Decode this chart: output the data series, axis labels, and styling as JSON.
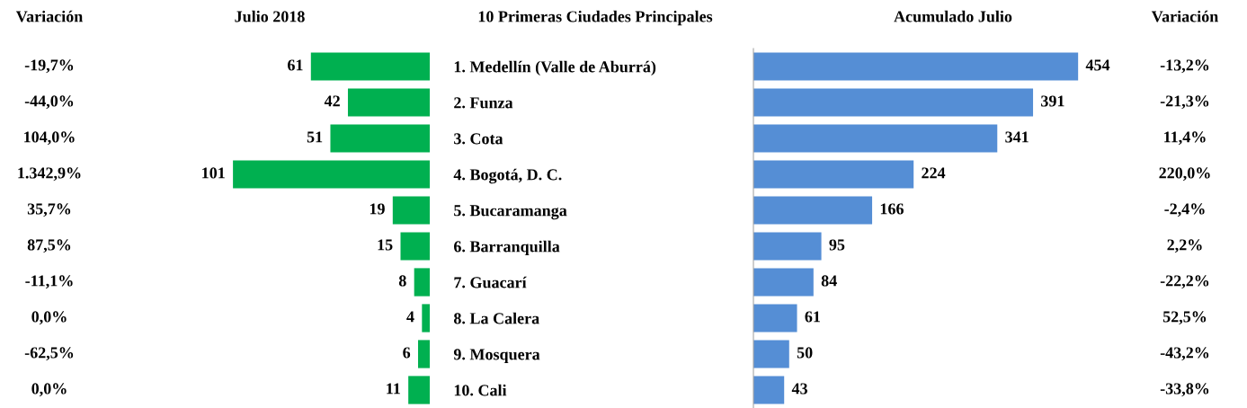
{
  "chart_data": [
    {
      "type": "bar",
      "orientation": "horizontal",
      "title": "Julio 2018",
      "ylabel": "10 Primeras Ciudades Principales",
      "categories": [
        "1. Medellín (Valle de Aburrá)",
        "2. Funza",
        "3. Cota",
        "4. Bogotá, D. C.",
        "5. Bucaramanga",
        "6. Barranquilla",
        "7. Guacarí",
        "8. La Calera",
        "9. Mosquera",
        "10. Cali"
      ],
      "values": [
        61,
        42,
        51,
        101,
        19,
        15,
        8,
        4,
        6,
        11
      ],
      "color": "#00b050",
      "data_labels": true,
      "tick_labels": "y",
      "annotations": [
        "Variación",
        "-19,7%",
        "-44,0%",
        "104,0%",
        "1.342,9%",
        "35,7%",
        "87,5%",
        "-11,1%",
        "0,0%",
        "-62,5%",
        "0,0%"
      ]
    },
    {
      "type": "bar",
      "orientation": "horizontal",
      "title": "Acumulado Julio",
      "categories": [
        null,
        null,
        null,
        null,
        null,
        null,
        null,
        null,
        null,
        null
      ],
      "values": [
        454,
        391,
        341,
        224,
        166,
        95,
        84,
        61,
        50,
        43
      ],
      "color": "#558ed5",
      "data_labels": true,
      "tick_labels": false,
      "annotations": [
        "Variación",
        "-13,2%",
        "-21,3%",
        "11,4%",
        "220,0%",
        "-2,4%",
        "2,2%",
        "-22,2%",
        "52,5%",
        "-43,2%",
        "-33,8%"
      ]
    }
  ]
}
